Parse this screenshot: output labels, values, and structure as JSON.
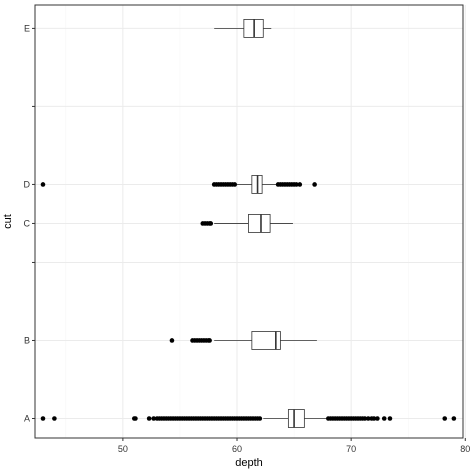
{
  "chart_data": {
    "type": "boxplot",
    "orientation": "horizontal",
    "xlabel": "depth",
    "ylabel": "cut",
    "xlim": [
      42.3,
      79.8
    ],
    "x_ticks": [
      50,
      60,
      70,
      80
    ],
    "y_ticks": [
      {
        "pos": 0,
        "label": "A"
      },
      {
        "pos": 1,
        "label": "B"
      },
      {
        "pos": 2,
        "label": ""
      },
      {
        "pos": 2.5,
        "label": "C"
      },
      {
        "pos": 3,
        "label": "D"
      },
      {
        "pos": 4,
        "label": ""
      },
      {
        "pos": 5,
        "label": "E"
      }
    ],
    "ylim": [
      -0.25,
      5.3
    ],
    "grid": true,
    "colors": {
      "panel_border": "#333333",
      "grid_major": "#ebebeb",
      "grid_minor": "#f5f5f5",
      "box": "#333333",
      "point": "#000000"
    },
    "boxes": [
      {
        "category": "A",
        "pos": 0,
        "whisker_low": 62.3,
        "q1": 64.5,
        "median": 65.0,
        "q3": 65.9,
        "whisker_high": 67.9,
        "outliers": [
          43.0,
          44.0,
          51.0,
          51.1,
          52.3,
          52.7,
          53.0,
          53.2,
          53.4,
          53.6,
          53.8,
          54.0,
          54.2,
          54.4,
          54.6,
          54.8,
          55.0,
          55.2,
          55.4,
          55.6,
          55.8,
          56.0,
          56.2,
          56.4,
          56.6,
          56.8,
          57.0,
          57.2,
          57.4,
          57.6,
          57.8,
          58.0,
          58.2,
          58.4,
          58.6,
          58.8,
          59.0,
          59.2,
          59.4,
          59.6,
          59.8,
          60.0,
          60.2,
          60.4,
          60.6,
          60.8,
          61.0,
          61.2,
          61.4,
          61.6,
          61.8,
          62.0,
          68.0,
          68.2,
          68.4,
          68.6,
          68.8,
          69.0,
          69.2,
          69.4,
          69.6,
          69.8,
          70.0,
          70.2,
          70.4,
          70.6,
          70.8,
          71.0,
          71.2,
          71.5,
          71.8,
          72.0,
          72.3,
          72.9,
          73.4,
          78.2,
          79.0
        ]
      },
      {
        "category": "B",
        "pos": 1,
        "whisker_low": 58.0,
        "q1": 61.3,
        "median": 63.4,
        "q3": 63.8,
        "whisker_high": 67.0,
        "outliers": [
          54.3,
          56.1,
          56.3,
          56.5,
          56.7,
          56.9,
          57.1,
          57.3,
          57.5,
          57.6
        ]
      },
      {
        "category": "C",
        "pos": 2.5,
        "whisker_low": 58.0,
        "q1": 61.0,
        "median": 62.1,
        "q3": 62.9,
        "whisker_high": 64.9,
        "outliers": [
          57.0,
          57.2,
          57.4,
          57.6,
          57.7
        ]
      },
      {
        "category": "D",
        "pos": 3,
        "whisker_low": 60.0,
        "q1": 61.3,
        "median": 61.8,
        "q3": 62.2,
        "whisker_high": 63.5,
        "outliers": [
          43.0,
          58.0,
          58.2,
          58.4,
          58.6,
          58.8,
          59.0,
          59.2,
          59.4,
          59.6,
          59.8,
          63.6,
          63.8,
          64.0,
          64.2,
          64.4,
          64.6,
          64.8,
          65.0,
          65.2,
          65.5,
          66.8
        ]
      },
      {
        "category": "E",
        "pos": 5,
        "whisker_low": 58.0,
        "q1": 60.6,
        "median": 61.5,
        "q3": 62.3,
        "whisker_high": 63.0,
        "outliers": []
      }
    ]
  }
}
